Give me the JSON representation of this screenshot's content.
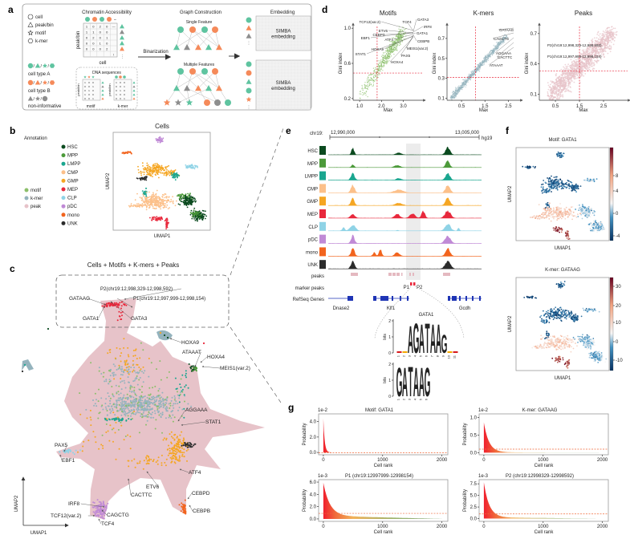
{
  "panel_labels": {
    "a": "a",
    "b": "b",
    "c": "c",
    "d": "d",
    "e": "e",
    "f": "f",
    "g": "g"
  },
  "colors": {
    "motif": "#8bbf6a",
    "kmer": "#94b3bd",
    "peak": "#e7c3c9",
    "type_a": "#5fc4a0",
    "type_b": "#f58a5a",
    "non_informative": "#8e8e8e",
    "highlight": "#e8283c",
    "logo_A": "#d7191c",
    "logo_G": "#f5a800",
    "logo_T": "#1a8a1a",
    "gene": "#1f35b5"
  },
  "a": {
    "legend": [
      {
        "symbol": "circle",
        "label": "cell"
      },
      {
        "symbol": "triangle",
        "label": "peak/bin"
      },
      {
        "symbol": "star",
        "label": "motif"
      },
      {
        "symbol": "hexagon",
        "label": "k-mer"
      }
    ],
    "cell_type_a": "cell type A",
    "cell_type_b": "cell type B",
    "non_informative": "non-informative",
    "chromatin_title": "Chromatin Accessibility",
    "peak_bin": "peak/bin",
    "cell": "cell",
    "matrix": [
      [
        "1",
        "0",
        "2",
        "0",
        "—"
      ],
      [
        "1",
        "1",
        "0",
        "0",
        ""
      ],
      [
        "0",
        "2",
        "0",
        "1",
        ""
      ],
      [
        "0",
        "0",
        "1",
        "0",
        ""
      ],
      [
        "0",
        "0",
        "0",
        "2",
        ""
      ],
      [
        "",
        "",
        "",
        "",
        "\\"
      ]
    ],
    "dna_title": "DNA sequences",
    "motif": "motif",
    "kmer": "k-mer",
    "binarization": "Binarization",
    "graph_title": "Graph Construction",
    "single_feature": "Single Feature",
    "multiple_features": "Multiple Features",
    "embedding_title": "Embedding",
    "simba_1": "SIMBA",
    "simba_2": "embedding",
    "ellipsis": "⋮"
  },
  "b": {
    "annotation_title": "Annotation",
    "feature_legend": [
      {
        "label": "motif",
        "color": "#8bbf6a"
      },
      {
        "label": "k-mer",
        "color": "#94b3bd"
      },
      {
        "label": "peak",
        "color": "#e7c3c9"
      }
    ],
    "cell_types": [
      {
        "label": "HSC",
        "color": "#0b4a1f"
      },
      {
        "label": "MPP",
        "color": "#4c9a3a"
      },
      {
        "label": "LMPP",
        "color": "#1aa68f"
      },
      {
        "label": "CMP",
        "color": "#fcc08a"
      },
      {
        "label": "GMP",
        "color": "#f5a623"
      },
      {
        "label": "MEP",
        "color": "#e8283c"
      },
      {
        "label": "CLP",
        "color": "#8fd3e6"
      },
      {
        "label": "pDC",
        "color": "#c08ad6"
      },
      {
        "label": "mono",
        "color": "#f2641e"
      },
      {
        "label": "UNK",
        "color": "#2b2b2b"
      }
    ],
    "title": "Cells",
    "xlabel": "UMAP1",
    "ylabel": "UMAP2"
  },
  "c": {
    "title": "Cells + Motifs + K-mers + Peaks",
    "xlabel": "UMAP1",
    "ylabel": "UMAP2",
    "annotations": [
      {
        "label": "P2(chr19:12,998,329-12,998,592)",
        "kind": "peak"
      },
      {
        "label": "P1(chr19:12,997,999-12,998,154)",
        "kind": "peak"
      },
      {
        "label": "GATAAG",
        "kind": "kmer"
      },
      {
        "label": "GATA1",
        "kind": "motif"
      },
      {
        "label": "GATA3",
        "kind": "motif"
      },
      {
        "label": "HOXA9",
        "kind": "motif"
      },
      {
        "label": "ATAAAT",
        "kind": "kmer"
      },
      {
        "label": "HOXA4",
        "kind": "motif"
      },
      {
        "label": "MEIS1(var.2)",
        "kind": "motif"
      },
      {
        "label": "AGGAAA",
        "kind": "kmer"
      },
      {
        "label": "STAT1",
        "kind": "motif"
      },
      {
        "label": "PAX5",
        "kind": "motif"
      },
      {
        "label": "EBF1",
        "kind": "motif"
      },
      {
        "label": "ATF4",
        "kind": "motif"
      },
      {
        "label": "ETV6",
        "kind": "motif"
      },
      {
        "label": "CACTTC",
        "kind": "kmer"
      },
      {
        "label": "CEBPD",
        "kind": "motif"
      },
      {
        "label": "CEBPB",
        "kind": "motif"
      },
      {
        "label": "IRF8",
        "kind": "motif"
      },
      {
        "label": "CAGCTG",
        "kind": "kmer"
      },
      {
        "label": "TCF12(var.2)",
        "kind": "motif"
      },
      {
        "label": "TCF4",
        "kind": "motif"
      }
    ]
  },
  "d": {
    "plots": [
      {
        "title": "Motifs",
        "xlabel": "Max",
        "ylabel": "Gini index",
        "xlim": [
          0.7,
          3.9
        ],
        "ylim": [
          0.18,
          1.02
        ],
        "xticks": [
          "1.0",
          "2.0",
          "3.0"
        ],
        "yticks": [
          "0.2",
          "0.6",
          "1.0"
        ],
        "vline": 1.8,
        "hline": 0.49,
        "color": "#8bbf6a",
        "labels": [
          "TCF12(var.2)",
          "TCF4",
          "GATA3",
          "IRF8",
          "EBF1",
          "ETV6",
          "CEBPD",
          "GATA1",
          "ATF4",
          "CEBPB",
          "MEIS1(var.2)",
          "HOXA9",
          "STAT1",
          "PAX5",
          "HOXA4"
        ],
        "highlight": "GATA1"
      },
      {
        "title": "K-mers",
        "xlabel": "Max",
        "ylabel": "Gini index",
        "xlim": [
          -0.12,
          3.0
        ],
        "ylim": [
          0.08,
          0.82
        ],
        "xticks": [
          "0.5",
          "1.5",
          "2.5"
        ],
        "yticks": [
          "0.1",
          "0.3",
          "0.5",
          "0.7"
        ],
        "vline": 1.1,
        "hline": 0.31,
        "color": "#94b3bd",
        "labels": [
          "GATAAG",
          "CAGCTG",
          "AGGAAA",
          "CACTTC",
          "ATAAAT"
        ],
        "highlight": "GATAAG"
      },
      {
        "title": "Peaks",
        "xlabel": "Max",
        "ylabel": "Gini index",
        "xlim": [
          -0.17,
          3.5
        ],
        "ylim": [
          0.04,
          0.77
        ],
        "xticks": [
          "0.5",
          "1.5",
          "2.5"
        ],
        "yticks": [
          "0.1",
          "0.4",
          "0.7"
        ],
        "vline": 1.5,
        "hline": 0.33,
        "color": "#e7c3c9",
        "labels": [
          "P2(chr19:12,998,329-12,998,592)",
          "P1(chr19:12,997,999-12,998,154)"
        ],
        "highlight": "all"
      }
    ]
  },
  "e": {
    "chrom": "chr19:",
    "start": "12,990,000",
    "end": "13,005,000",
    "genome": "hg19",
    "tracks": [
      "HSC",
      "MPP",
      "LMPP",
      "CMP",
      "GMP",
      "MEP",
      "CLP",
      "pDC",
      "mono",
      "UNK"
    ],
    "peaks_label": "peaks",
    "marker_peaks_label": "marker peaks",
    "p1": "P1",
    "p2": "P2",
    "refseq_label": "RefSeq Genes",
    "genes": [
      "Dnase2",
      "Klf1",
      "Gcdh"
    ],
    "logo_title": "GATA1",
    "logo_ylabel": "bits",
    "logo_yticks": [
      "0",
      "1",
      "2"
    ],
    "logo1": {
      "letters": [
        "A",
        "G",
        "A",
        "T",
        "A",
        "A",
        "G"
      ],
      "positions": [
        "1",
        "2",
        "3",
        "4",
        "5",
        "6",
        "7",
        "8",
        "9",
        "10",
        "11"
      ]
    },
    "logo2": {
      "letters": [
        "G",
        "A",
        "T",
        "A",
        "A",
        "G"
      ],
      "positions": [
        "1",
        "2",
        "3",
        "4",
        "5",
        "6"
      ]
    }
  },
  "f": {
    "plots": [
      {
        "title": "Motif: GATA1",
        "xlabel": "UMAP1",
        "ylabel": "UMAP2",
        "cbar_ticks": [
          "8",
          "4",
          "0",
          "-4"
        ],
        "range": [
          -5,
          11
        ]
      },
      {
        "title": "K-mer: GATAAG",
        "xlabel": "UMAP1",
        "ylabel": "UMAP2",
        "cbar_ticks": [
          "30",
          "20",
          "10",
          "0",
          "-10"
        ],
        "range": [
          -15,
          35
        ]
      }
    ]
  },
  "g": {
    "plots": [
      {
        "title": "Motif: GATA1",
        "scale": "1e-2",
        "ylabel": "Probability",
        "xlabel": "Cell rank",
        "xticks": [
          "0",
          "1000",
          "2000"
        ],
        "yticks": [
          "0.0",
          "2.0",
          "4.0"
        ],
        "ytick_values": [
          0,
          2,
          4
        ],
        "ylim": [
          -0.3,
          5
        ],
        "peak": 4.4,
        "decay": 22,
        "floor": 0,
        "threshold": -0.05
      },
      {
        "title": "K-mer: GATAAG",
        "scale": "1e-2",
        "ylabel": "Probability",
        "xlabel": "Cell rank",
        "xticks": [
          "0",
          "1000",
          "2000"
        ],
        "yticks": [
          "0.0",
          "0.5",
          "1.0"
        ],
        "ytick_values": [
          0,
          0.5,
          1.0
        ],
        "ylim": [
          -0.06,
          1.1
        ],
        "peak": 0.85,
        "decay": 85,
        "floor": 0.01,
        "threshold": 0.1
      },
      {
        "title": "P1 (chr19:12997999-12998154)",
        "scale": "1e-3",
        "ylabel": "Probability",
        "xlabel": "Cell rank",
        "xticks": [
          "0",
          "1000",
          "2000"
        ],
        "yticks": [
          "0.0",
          "2.0",
          "4.0",
          "6.0"
        ],
        "ytick_values": [
          0,
          2,
          4,
          6
        ],
        "ylim": [
          -0.4,
          6.4
        ],
        "peak": 5.4,
        "decay": 110,
        "floor": 0.5,
        "threshold": 0.9
      },
      {
        "title": "P2 (chr19:12998329-12998592)",
        "scale": "1e-3",
        "ylabel": "Probability",
        "xlabel": "Cell rank",
        "xticks": [
          "0",
          "1000",
          "2000"
        ],
        "yticks": [
          "0.0",
          "2.5",
          "5.0",
          "7.5"
        ],
        "ytick_values": [
          0,
          2.5,
          5,
          7.5
        ],
        "ylim": [
          -0.6,
          8.4
        ],
        "peak": 7.6,
        "decay": 90,
        "floor": 0.25,
        "threshold": 1.0
      }
    ]
  }
}
